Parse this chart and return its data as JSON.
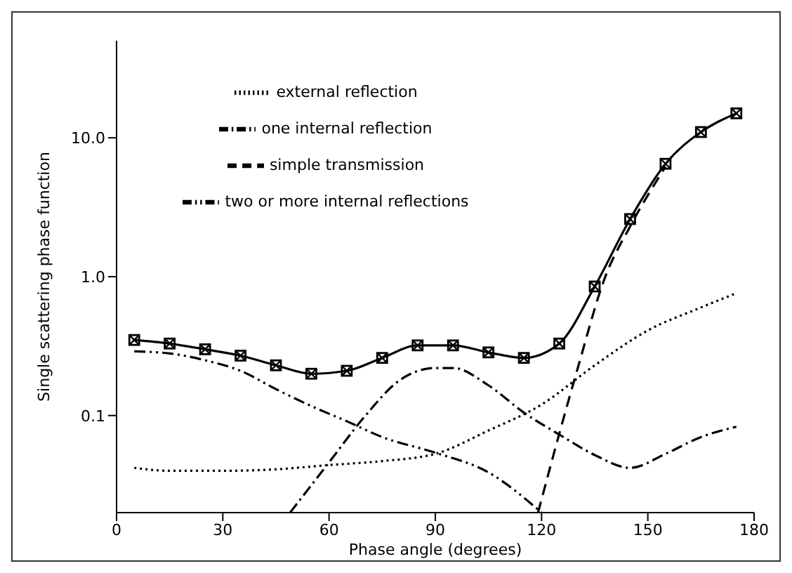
{
  "chart_data": {
    "type": "line",
    "xlabel": "Phase angle (degrees)",
    "ylabel": "Single scattering phase function",
    "log": "y",
    "xlim": [
      0,
      180
    ],
    "xticks": [
      0,
      30,
      60,
      90,
      120,
      150,
      180
    ],
    "ylim": [
      0.02,
      50
    ],
    "yticks": [
      0.1,
      {
        "value": 1,
        "label": "1.0"
      },
      {
        "value": 10,
        "label": "10.0"
      }
    ],
    "legend": "top left",
    "series": [
      {
        "color": "#000000",
        "line_style": "solid",
        "marker": "square",
        "x": [
          5,
          15,
          25,
          35,
          45,
          55,
          65,
          75,
          85,
          95,
          105,
          115,
          125,
          135,
          145,
          155,
          165,
          175
        ],
        "values": [
          0.35,
          0.33,
          0.3,
          0.27,
          0.23,
          0.2,
          0.21,
          0.26,
          0.32,
          0.32,
          0.285,
          0.26,
          0.33,
          0.85,
          2.6,
          6.5,
          11,
          15
        ]
      },
      {
        "name": "external reflection",
        "color": "#000000",
        "line_style": "dotted",
        "marker": "none",
        "x": [
          5,
          15,
          30,
          45,
          60,
          75,
          90,
          105,
          120,
          135,
          150,
          165,
          175
        ],
        "values": [
          0.042,
          0.04,
          0.04,
          0.041,
          0.044,
          0.047,
          0.053,
          0.078,
          0.12,
          0.23,
          0.41,
          0.6,
          0.76
        ]
      },
      {
        "name": "simple transmission",
        "color": "#000000",
        "line_style": "dashed",
        "marker": "none",
        "x": [
          119,
          125,
          130,
          138,
          145,
          155
        ],
        "values": [
          0.02,
          0.074,
          0.21,
          1.0,
          2.3,
          6.2
        ]
      },
      {
        "name": "one internal reflection",
        "color": "#000000",
        "line_style": "dashdot",
        "marker": "none",
        "x": [
          49,
          60,
          70,
          80,
          90,
          95,
          105,
          115,
          125,
          135,
          145,
          155,
          165,
          175
        ],
        "values": [
          0.02,
          0.046,
          0.098,
          0.18,
          0.22,
          0.22,
          0.165,
          0.105,
          0.073,
          0.052,
          0.042,
          0.053,
          0.07,
          0.083
        ]
      },
      {
        "name": "two or more internal reflections",
        "color": "#000000",
        "line_style": "dashdotdot",
        "marker": "none",
        "x": [
          5,
          15,
          25,
          35,
          45,
          55,
          65,
          75,
          90,
          105,
          120
        ],
        "values": [
          0.29,
          0.28,
          0.25,
          0.21,
          0.155,
          0.117,
          0.091,
          0.07,
          0.054,
          0.039,
          0.02
        ]
      }
    ]
  }
}
